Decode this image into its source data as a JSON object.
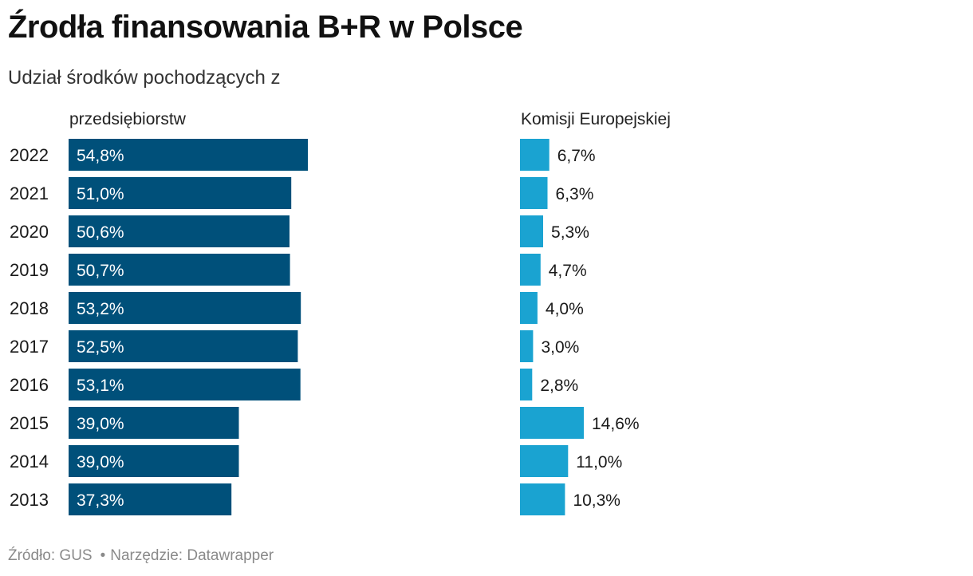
{
  "title": "Źrodła finansowania B+R w Polsce",
  "subtitle": "Udział środków pochodzących z",
  "footer": {
    "source": "Źródło: GUS",
    "separator": "•",
    "tool": "Narzędzie: Datawrapper"
  },
  "colors": {
    "left_bar": "#00507a",
    "right_bar": "#1aa3d1",
    "left_label": "#ffffff",
    "right_label": "#1a1a1a"
  },
  "chart_data": {
    "type": "bar",
    "orientation": "horizontal",
    "categories": [
      "2022",
      "2021",
      "2020",
      "2019",
      "2018",
      "2017",
      "2016",
      "2015",
      "2014",
      "2013"
    ],
    "series": [
      {
        "name": "przedsiębiorstw",
        "values": [
          54.8,
          51.0,
          50.6,
          50.7,
          53.2,
          52.5,
          53.1,
          39.0,
          39.0,
          37.3
        ],
        "labels": [
          "54,8%",
          "51,0%",
          "50,6%",
          "50,7%",
          "53,2%",
          "52,5%",
          "53,1%",
          "39,0%",
          "39,0%",
          "37,3%"
        ]
      },
      {
        "name": "Komisji Europejskiej",
        "values": [
          6.7,
          6.3,
          5.3,
          4.7,
          4.0,
          3.0,
          2.8,
          14.6,
          11.0,
          10.3
        ],
        "labels": [
          "6,7%",
          "6,3%",
          "5,3%",
          "4,7%",
          "4,0%",
          "3,0%",
          "2,8%",
          "14,6%",
          "11,0%",
          "10,3%"
        ]
      }
    ],
    "unit": "%",
    "grid": false,
    "legend": "none"
  }
}
